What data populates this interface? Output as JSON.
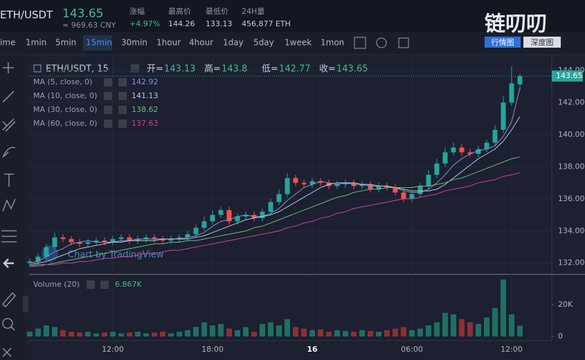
{
  "header": {
    "pair": "ETH/USDT",
    "price_cny": "≈ 969.63 CNY",
    "stats": [
      {
        "label": "涨幅",
        "value": "+4.97%"
      },
      {
        "label": "最高价",
        "value": "144.26"
      },
      {
        "label": "最低价",
        "value": "133.13"
      },
      {
        "label": "24H量",
        "value": "456,877 ETH"
      }
    ]
  },
  "logo": "链叨叨",
  "view_tabs": [
    "行情图",
    "深度图"
  ],
  "intervals": [
    "ime",
    "1min",
    "5min",
    "15min",
    "30min",
    "1hour",
    "4hour",
    "1day",
    "5day",
    "1week",
    "1mon"
  ],
  "active_interval": 3,
  "watermark": "Chart by TradingView",
  "chart_data": [
    {
      "type": "candlestick",
      "legend_title": "ETH/USDT, 15",
      "ohlc_labels": [
        "开=",
        "高=",
        "低=",
        "收="
      ],
      "up_color": "#26a69a",
      "down_color": "#ef5350",
      "open": [
        132.0,
        132.1,
        132.4,
        133.0,
        133.6,
        133.5,
        133.3,
        133.2,
        133.3,
        133.4,
        133.3,
        133.5,
        133.6,
        133.4,
        133.5,
        133.6,
        133.5,
        133.4,
        133.5,
        133.6,
        133.8,
        134.2,
        134.6,
        135.0,
        135.3,
        134.6,
        134.9,
        135.0,
        134.8,
        135.2,
        135.8,
        136.3,
        137.3,
        137.0,
        136.9,
        137.1,
        137.0,
        136.8,
        136.9,
        137.0,
        136.8,
        136.9,
        136.6,
        136.8,
        136.7,
        136.4,
        136.0,
        136.3,
        136.8,
        137.5,
        138.2,
        138.9,
        139.2,
        138.9,
        138.8,
        139.1,
        139.5,
        140.3,
        142.0,
        143.13
      ],
      "high": [
        132.3,
        132.6,
        133.2,
        133.9,
        133.8,
        133.7,
        133.5,
        133.5,
        133.6,
        133.6,
        133.7,
        133.8,
        133.8,
        133.7,
        133.8,
        133.8,
        133.7,
        133.7,
        133.8,
        134.0,
        134.4,
        134.9,
        135.3,
        135.5,
        135.5,
        135.1,
        135.2,
        135.2,
        135.4,
        136.0,
        136.6,
        137.6,
        137.5,
        137.2,
        137.3,
        137.3,
        137.2,
        137.1,
        137.2,
        137.2,
        137.1,
        137.1,
        137.0,
        137.0,
        136.9,
        136.6,
        136.5,
        137.0,
        137.8,
        138.5,
        139.2,
        139.5,
        139.4,
        139.1,
        139.3,
        139.7,
        140.6,
        142.4,
        144.26,
        143.8
      ],
      "low": [
        131.8,
        131.9,
        132.2,
        132.8,
        133.3,
        133.1,
        133.0,
        133.0,
        133.1,
        133.1,
        133.1,
        133.3,
        133.2,
        133.2,
        133.3,
        133.3,
        133.2,
        133.2,
        133.3,
        133.4,
        133.6,
        134.0,
        134.4,
        134.8,
        134.4,
        134.4,
        134.7,
        134.6,
        134.6,
        135.0,
        135.6,
        136.1,
        136.8,
        136.7,
        136.7,
        136.8,
        136.6,
        136.6,
        136.7,
        136.6,
        136.6,
        136.4,
        136.4,
        136.5,
        136.2,
        135.8,
        135.8,
        136.1,
        136.6,
        137.3,
        138.0,
        138.7,
        138.7,
        138.6,
        138.6,
        138.9,
        139.3,
        140.1,
        141.8,
        142.77
      ],
      "close": [
        132.1,
        132.4,
        133.0,
        133.6,
        133.5,
        133.3,
        133.2,
        133.3,
        133.4,
        133.3,
        133.5,
        133.6,
        133.4,
        133.5,
        133.6,
        133.5,
        133.4,
        133.5,
        133.6,
        133.8,
        134.2,
        134.6,
        135.0,
        135.3,
        134.6,
        134.9,
        135.0,
        134.8,
        135.2,
        135.8,
        136.3,
        137.3,
        137.0,
        136.9,
        137.1,
        137.0,
        136.8,
        136.9,
        137.0,
        136.8,
        136.9,
        136.6,
        136.8,
        136.7,
        136.4,
        136.0,
        136.3,
        136.8,
        137.5,
        138.2,
        138.9,
        139.2,
        138.9,
        138.8,
        139.1,
        139.5,
        140.3,
        142.0,
        143.2,
        143.65
      ],
      "series": [
        {
          "name": "MA (5, close, 0)",
          "color": "#8c8fdc",
          "values": [
            132.0,
            132.1,
            132.4,
            132.7,
            132.9,
            133.2,
            133.3,
            133.4,
            133.3,
            133.3,
            133.3,
            133.4,
            133.4,
            133.5,
            133.5,
            133.5,
            133.5,
            133.5,
            133.5,
            133.6,
            133.7,
            133.9,
            134.3,
            134.6,
            134.7,
            134.9,
            135.0,
            134.9,
            134.9,
            135.1,
            135.4,
            135.9,
            136.3,
            136.7,
            136.9,
            137.1,
            137.0,
            136.9,
            137.0,
            136.9,
            136.9,
            136.8,
            136.8,
            136.8,
            136.7,
            136.5,
            136.4,
            136.4,
            136.6,
            137.0,
            137.5,
            138.1,
            138.5,
            138.8,
            139.0,
            139.1,
            139.3,
            139.9,
            140.8,
            142.92
          ]
        },
        {
          "name": "MA (10, close, 0)",
          "color": "#b9c8e0",
          "values": [
            131.9,
            132.0,
            132.1,
            132.3,
            132.5,
            132.7,
            132.9,
            133.0,
            133.1,
            133.2,
            133.3,
            133.3,
            133.4,
            133.4,
            133.4,
            133.4,
            133.5,
            133.5,
            133.5,
            133.5,
            133.6,
            133.7,
            133.9,
            134.1,
            134.3,
            134.5,
            134.7,
            134.8,
            134.9,
            135.0,
            135.2,
            135.5,
            135.8,
            136.1,
            136.4,
            136.7,
            136.9,
            137.0,
            137.0,
            137.0,
            136.9,
            136.9,
            136.8,
            136.8,
            136.7,
            136.6,
            136.5,
            136.5,
            136.5,
            136.6,
            136.9,
            137.3,
            137.7,
            138.1,
            138.5,
            138.8,
            139.1,
            139.6,
            140.3,
            141.13
          ]
        },
        {
          "name": "MA (30, close, 0)",
          "color": "#6fbf73",
          "values": [
            131.8,
            131.9,
            131.9,
            132.0,
            132.1,
            132.2,
            132.3,
            132.4,
            132.5,
            132.6,
            132.7,
            132.8,
            132.9,
            133.0,
            133.1,
            133.2,
            133.2,
            133.3,
            133.3,
            133.4,
            133.4,
            133.5,
            133.6,
            133.7,
            133.8,
            133.9,
            134.0,
            134.2,
            134.3,
            134.5,
            134.7,
            134.9,
            135.1,
            135.3,
            135.5,
            135.7,
            135.9,
            136.1,
            136.2,
            136.4,
            136.5,
            136.6,
            136.6,
            136.7,
            136.7,
            136.7,
            136.7,
            136.8,
            136.8,
            136.9,
            137.0,
            137.2,
            137.3,
            137.5,
            137.7,
            137.9,
            138.1,
            138.3,
            138.5,
            138.62
          ]
        },
        {
          "name": "MA (60, close, 0)",
          "color": "#d2409c",
          "values": [
            131.8,
            131.8,
            131.9,
            131.9,
            132.0,
            132.0,
            132.1,
            132.1,
            132.2,
            132.3,
            132.3,
            132.4,
            132.4,
            132.5,
            132.6,
            132.6,
            132.7,
            132.8,
            132.8,
            132.9,
            133.0,
            133.1,
            133.2,
            133.3,
            133.4,
            133.5,
            133.6,
            133.7,
            133.8,
            133.9,
            134.0,
            134.2,
            134.3,
            134.5,
            134.6,
            134.8,
            134.9,
            135.1,
            135.2,
            135.4,
            135.5,
            135.6,
            135.7,
            135.8,
            135.9,
            136.0,
            136.0,
            136.1,
            136.2,
            136.3,
            136.5,
            136.6,
            136.7,
            136.8,
            137.0,
            137.1,
            137.2,
            137.4,
            137.5,
            137.63
          ]
        }
      ],
      "ylim": [
        131.3,
        144.6
      ],
      "yticks": [
        {
          "value": 132,
          "label": "132.00"
        },
        {
          "value": 134,
          "label": "134.00"
        },
        {
          "value": 136,
          "label": "136.00"
        },
        {
          "value": 138,
          "label": "138.00"
        },
        {
          "value": 140,
          "label": "140.00"
        },
        {
          "value": 142,
          "label": "142.00"
        },
        {
          "value": 144,
          "label": "144.00"
        }
      ],
      "xticks": [
        {
          "value": 10,
          "label": "12:00"
        },
        {
          "value": 22,
          "label": "18:00"
        },
        {
          "value": 34,
          "label": "16"
        },
        {
          "value": 46,
          "label": "06:00"
        },
        {
          "value": 58,
          "label": "12:00"
        }
      ],
      "grid": true
    },
    {
      "type": "bar",
      "name": "Volume (20)",
      "last_value_label": "6.867K",
      "up_color": "#1f6f64",
      "down_color": "#8a3036",
      "values": [
        3000,
        5000,
        7000,
        6000,
        4000,
        3000,
        2500,
        3000,
        2000,
        2500,
        3000,
        2000,
        2500,
        3000,
        2000,
        2500,
        3000,
        2000,
        3000,
        4000,
        6000,
        9000,
        7000,
        8000,
        5000,
        4000,
        6000,
        3000,
        8000,
        9000,
        7000,
        11000,
        6000,
        5000,
        4000,
        4500,
        3000,
        4000,
        3500,
        3000,
        4000,
        3500,
        3000,
        4000,
        5000,
        6000,
        4000,
        5000,
        7000,
        9000,
        15000,
        14000,
        11000,
        9000,
        8000,
        12000,
        18000,
        36000,
        14000,
        6867
      ],
      "ylim": [
        0,
        38000
      ],
      "yticks": [
        0,
        {
          "value": 20000,
          "label": "20K"
        }
      ]
    }
  ]
}
